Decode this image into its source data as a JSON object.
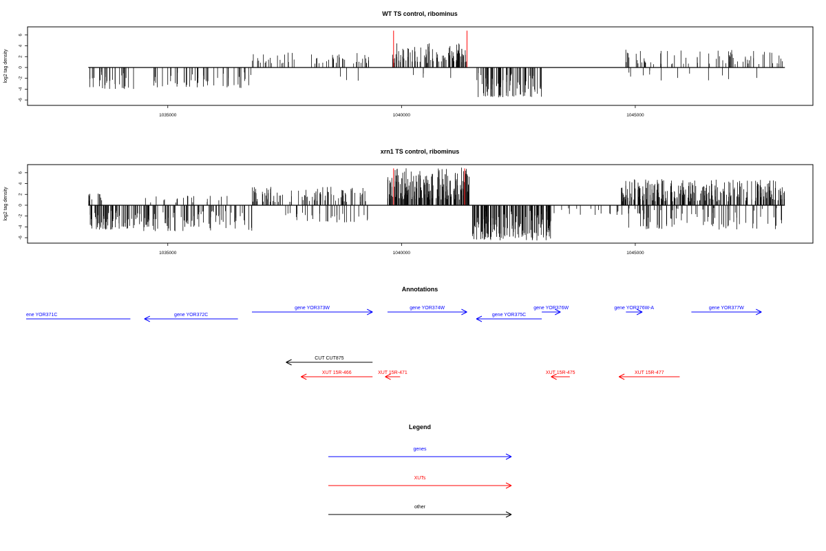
{
  "colors": {
    "gene": "#0000ff",
    "xut": "#ff0000",
    "other": "#000000",
    "marker": "#ff0000",
    "bars": "#000000"
  },
  "chart_data": [
    {
      "type": "bar",
      "title": "WT TS control, ribominus",
      "ylabel": "log2 tag density",
      "xlabel": "",
      "xlim": [
        1032000,
        1048800
      ],
      "ylim": [
        -7,
        7.5
      ],
      "x_ticks": [
        1035000,
        1040000,
        1045000
      ],
      "y_ticks": [
        -6,
        -4,
        -2,
        0,
        2,
        4,
        6
      ],
      "baseline": 0,
      "markers": [
        1039830,
        1041400
      ],
      "segments": [
        {
          "from": 1033300,
          "to": 1034300,
          "density": 0.45,
          "min": -4.0,
          "max": -0.8,
          "sign": -1,
          "seed": 11
        },
        {
          "from": 1034700,
          "to": 1036800,
          "density": 0.35,
          "min": -3.8,
          "max": -0.8,
          "sign": -1,
          "seed": 12
        },
        {
          "from": 1036800,
          "to": 1039300,
          "density": 0.3,
          "min": 0.7,
          "max": 2.8,
          "sign": 1,
          "seed": 13
        },
        {
          "from": 1038500,
          "to": 1039300,
          "density": 0.06,
          "min": -2.5,
          "max": -0.6,
          "sign": -1,
          "seed": 14
        },
        {
          "from": 1039800,
          "to": 1041400,
          "density": 0.85,
          "min": 0.8,
          "max": 4.5,
          "sign": 1,
          "seed": 15
        },
        {
          "from": 1040200,
          "to": 1041300,
          "density": 0.05,
          "min": -2.2,
          "max": -0.5,
          "sign": -1,
          "seed": 16
        },
        {
          "from": 1041600,
          "to": 1043000,
          "density": 0.85,
          "min": -5.5,
          "max": -1.0,
          "sign": -1,
          "seed": 17
        },
        {
          "from": 1044700,
          "to": 1048200,
          "density": 0.3,
          "min": 0.6,
          "max": 3.4,
          "sign": 1,
          "seed": 18
        },
        {
          "from": 1044700,
          "to": 1048200,
          "density": 0.05,
          "min": -2.4,
          "max": -0.5,
          "sign": -1,
          "seed": 19
        }
      ]
    },
    {
      "type": "bar",
      "title": "xrn1 TS control, ribominus",
      "ylabel": "log2 tag density",
      "xlabel": "",
      "xlim": [
        1032000,
        1048800
      ],
      "ylim": [
        -7,
        7.5
      ],
      "x_ticks": [
        1035000,
        1040000,
        1045000
      ],
      "y_ticks": [
        -6,
        -4,
        -2,
        0,
        2,
        4,
        6
      ],
      "baseline": 0,
      "markers": [
        1039830,
        1041350
      ],
      "segments": [
        {
          "from": 1033300,
          "to": 1034400,
          "density": 0.9,
          "min": -4.5,
          "max": -0.8,
          "sign": -1,
          "seed": 21
        },
        {
          "from": 1033300,
          "to": 1033600,
          "density": 0.5,
          "min": 0.8,
          "max": 2.5,
          "sign": 1,
          "seed": 22
        },
        {
          "from": 1034400,
          "to": 1036800,
          "density": 0.55,
          "min": -4.8,
          "max": -0.8,
          "sign": -1,
          "seed": 23
        },
        {
          "from": 1034400,
          "to": 1036500,
          "density": 0.15,
          "min": 0.5,
          "max": 1.8,
          "sign": 1,
          "seed": 24
        },
        {
          "from": 1036800,
          "to": 1039300,
          "density": 0.55,
          "min": 0.6,
          "max": 3.4,
          "sign": 1,
          "seed": 25
        },
        {
          "from": 1037500,
          "to": 1039300,
          "density": 0.25,
          "min": -3.2,
          "max": -0.6,
          "sign": -1,
          "seed": 26
        },
        {
          "from": 1039700,
          "to": 1041450,
          "density": 1.6,
          "min": 1.0,
          "max": 7.0,
          "sign": 1,
          "seed": 27
        },
        {
          "from": 1041500,
          "to": 1043200,
          "density": 1.3,
          "min": -6.5,
          "max": -1.0,
          "sign": -1,
          "seed": 28
        },
        {
          "from": 1043200,
          "to": 1044700,
          "density": 0.15,
          "min": -1.8,
          "max": -0.4,
          "sign": -1,
          "seed": 29
        },
        {
          "from": 1044700,
          "to": 1048200,
          "density": 1.1,
          "min": 0.7,
          "max": 4.8,
          "sign": 1,
          "seed": 30
        },
        {
          "from": 1044700,
          "to": 1048200,
          "density": 0.35,
          "min": -4.5,
          "max": -0.5,
          "sign": -1,
          "seed": 31
        }
      ]
    },
    {
      "type": "annotation-track",
      "title": "Annotations",
      "xlim": [
        1032000,
        1048800
      ],
      "features": [
        {
          "label": "ene YOR371C",
          "start": 1034200,
          "end": 1032000,
          "kind": "gene",
          "row": 2
        },
        {
          "label": "gene YOR372C",
          "start": 1036500,
          "end": 1034500,
          "kind": "gene",
          "row": 2
        },
        {
          "label": "gene YOR373W",
          "start": 1036800,
          "end": 1039380,
          "kind": "gene",
          "row": 1
        },
        {
          "label": "gene YOR374W",
          "start": 1039700,
          "end": 1041400,
          "kind": "gene",
          "row": 1
        },
        {
          "label": "gene YOR375C",
          "start": 1043000,
          "end": 1041600,
          "kind": "gene",
          "row": 2
        },
        {
          "label": "gene YOR376W",
          "start": 1043000,
          "end": 1043400,
          "kind": "gene",
          "row": 1
        },
        {
          "label": "gene YOR376W-A",
          "start": 1044800,
          "end": 1045150,
          "kind": "gene",
          "row": 1
        },
        {
          "label": "gene YOR377W",
          "start": 1046200,
          "end": 1047700,
          "kind": "gene",
          "row": 1
        },
        {
          "label": "CUT CUT875",
          "start": 1039380,
          "end": 1037530,
          "kind": "other",
          "row": 3
        },
        {
          "label": "XUT 15R-466",
          "start": 1039380,
          "end": 1037850,
          "kind": "xut",
          "row": 4
        },
        {
          "label": "XUT 15R-471",
          "start": 1039970,
          "end": 1039650,
          "kind": "xut",
          "row": 4
        },
        {
          "label": "XUT 15R-475",
          "start": 1043600,
          "end": 1043200,
          "kind": "xut",
          "row": 4
        },
        {
          "label": "XUT 15R-477",
          "start": 1045950,
          "end": 1044650,
          "kind": "xut",
          "row": 4
        }
      ]
    },
    {
      "type": "legend",
      "title": "Legend",
      "entries": [
        {
          "label": "genes",
          "kind": "gene"
        },
        {
          "label": "XUTs",
          "kind": "xut"
        },
        {
          "label": "other",
          "kind": "other"
        }
      ]
    }
  ]
}
